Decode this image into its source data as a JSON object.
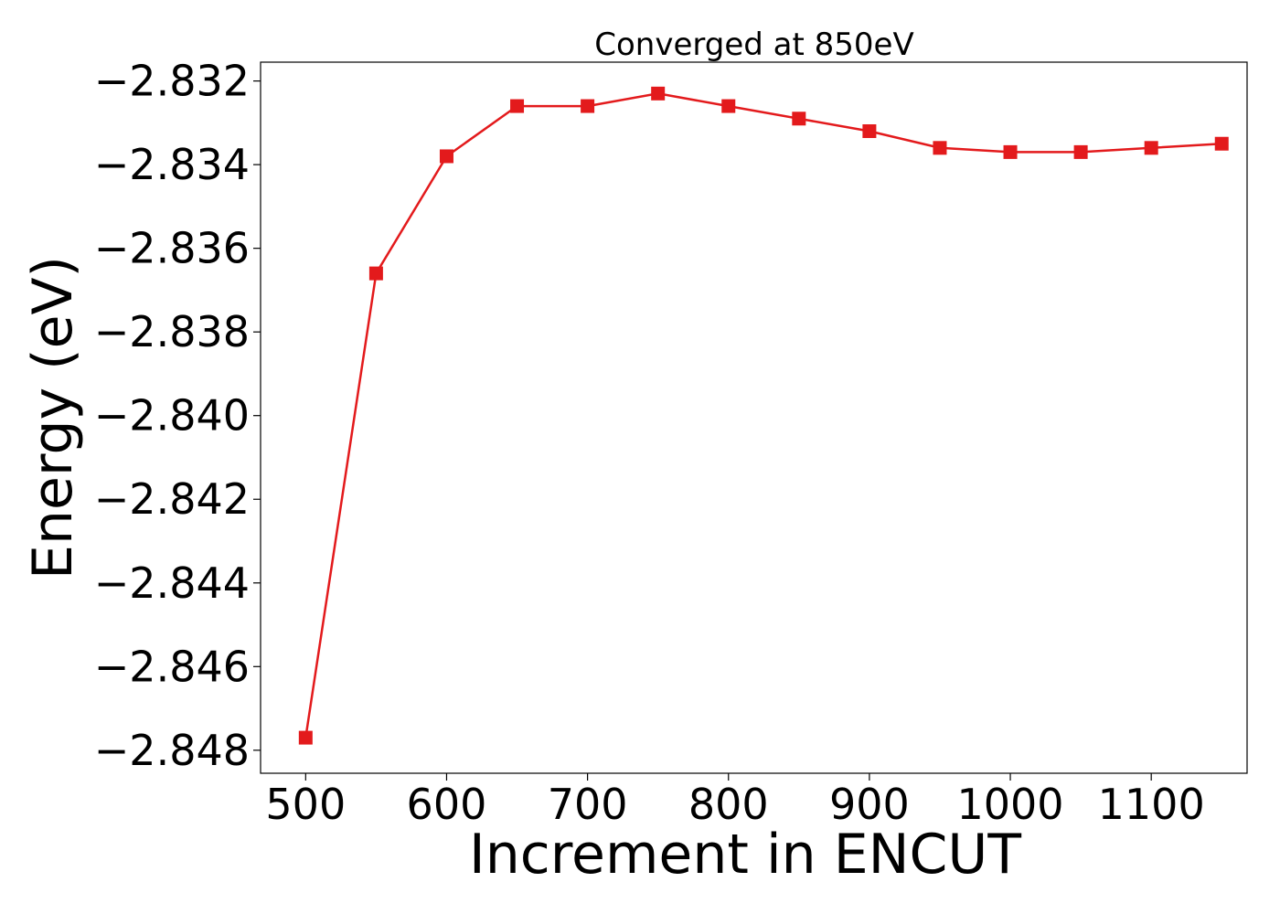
{
  "chart_data": {
    "type": "line",
    "title": "Converged at 850eV",
    "xlabel": "Increment in ENCUT",
    "ylabel": "Energy (eV)",
    "x": [
      500,
      550,
      600,
      650,
      700,
      750,
      800,
      850,
      900,
      950,
      1000,
      1050,
      1100,
      1150
    ],
    "series": [
      {
        "values": [
          -2.8477,
          -2.8366,
          -2.8338,
          -2.8326,
          -2.8326,
          -2.8323,
          -2.8326,
          -2.8329,
          -2.8332,
          -2.8336,
          -2.8337,
          -2.8337,
          -2.8336,
          -2.8335
        ],
        "color": "#e31a1c",
        "marker": "square"
      }
    ],
    "xlim": [
      468,
      1168
    ],
    "ylim": [
      -2.84855,
      -2.83155
    ],
    "x_ticks": [
      500,
      600,
      700,
      800,
      900,
      1000,
      1100
    ],
    "x_tick_labels": [
      "500",
      "600",
      "700",
      "800",
      "900",
      "1000",
      "1100"
    ],
    "y_ticks": [
      -2.848,
      -2.846,
      -2.844,
      -2.842,
      -2.84,
      -2.838,
      -2.836,
      -2.834,
      -2.832
    ],
    "y_tick_labels": [
      "−2.848",
      "−2.846",
      "−2.844",
      "−2.842",
      "−2.840",
      "−2.838",
      "−2.836",
      "−2.834",
      "−2.832"
    ],
    "grid": false,
    "legend": false
  }
}
